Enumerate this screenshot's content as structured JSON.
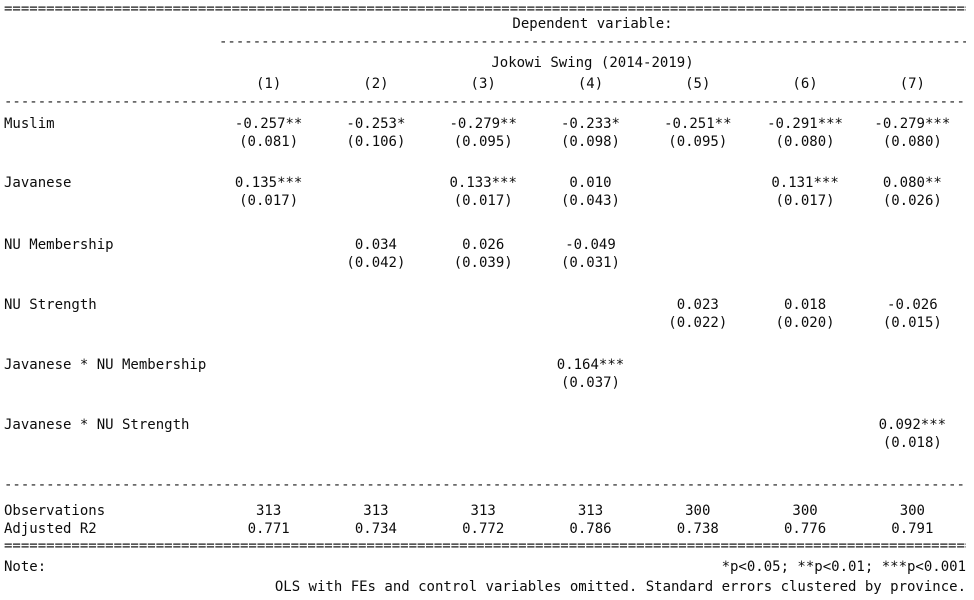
{
  "title": {
    "dependent_variable": "Dependent variable:",
    "dv_name": "Jokowi Swing (2014-2019)"
  },
  "columns": [
    "(1)",
    "(2)",
    "(3)",
    "(4)",
    "(5)",
    "(6)",
    "(7)"
  ],
  "coefficients": [
    {
      "label": "Muslim",
      "estimates": [
        "-0.257**",
        "-0.253*",
        "-0.279**",
        "-0.233*",
        "-0.251**",
        "-0.291***",
        "-0.279***"
      ],
      "std_errors": [
        "(0.081)",
        "(0.106)",
        "(0.095)",
        "(0.098)",
        "(0.095)",
        "(0.080)",
        "(0.080)"
      ]
    },
    {
      "label": "Javanese",
      "estimates": [
        "0.135***",
        "",
        "0.133***",
        "0.010",
        "",
        "0.131***",
        "0.080**"
      ],
      "std_errors": [
        "(0.017)",
        "",
        "(0.017)",
        "(0.043)",
        "",
        "(0.017)",
        "(0.026)"
      ]
    },
    {
      "label": "NU Membership",
      "estimates": [
        "",
        "0.034",
        "0.026",
        "-0.049",
        "",
        "",
        ""
      ],
      "std_errors": [
        "",
        "(0.042)",
        "(0.039)",
        "(0.031)",
        "",
        "",
        ""
      ]
    },
    {
      "label": "NU Strength",
      "estimates": [
        "",
        "",
        "",
        "",
        "0.023",
        "0.018",
        "-0.026"
      ],
      "std_errors": [
        "",
        "",
        "",
        "",
        "(0.022)",
        "(0.020)",
        "(0.015)"
      ]
    },
    {
      "label": "Javanese * NU Membership",
      "estimates": [
        "",
        "",
        "",
        "0.164***",
        "",
        "",
        ""
      ],
      "std_errors": [
        "",
        "",
        "",
        "(0.037)",
        "",
        "",
        ""
      ]
    },
    {
      "label": "Javanese * NU Strength",
      "estimates": [
        "",
        "",
        "",
        "",
        "",
        "",
        "0.092***"
      ],
      "std_errors": [
        "",
        "",
        "",
        "",
        "",
        "",
        "(0.018)"
      ]
    }
  ],
  "stats": [
    {
      "label": "Observations",
      "values": [
        "313",
        "313",
        "313",
        "313",
        "300",
        "300",
        "300"
      ]
    },
    {
      "label": "Adjusted R2",
      "values": [
        "0.771",
        "0.734",
        "0.772",
        "0.786",
        "0.738",
        "0.776",
        "0.791"
      ]
    }
  ],
  "notes": {
    "label": "Note:",
    "significance": "*p<0.05; **p<0.01; ***p<0.001",
    "method": "OLS with FEs and control variables omitted. Standard errors clustered by province."
  },
  "rules": {
    "double": "==================================================================================================================================",
    "dashed": "----------------------------------------------------------------------------------------------------------------------------------",
    "dashed_span": "----------------------------------------------------------------------------------------------------"
  }
}
